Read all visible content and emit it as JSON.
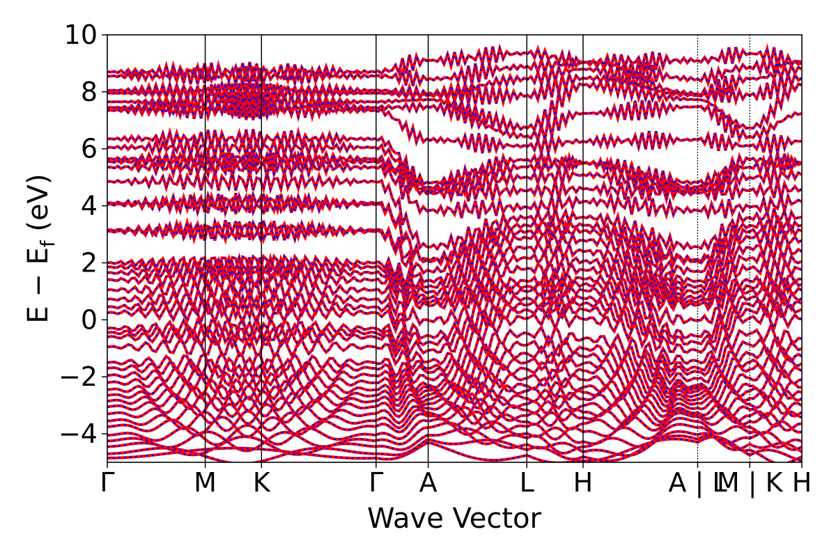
{
  "chart_data": {
    "type": "line",
    "title": "",
    "xlabel": "Wave Vector",
    "ylabel": "E − E",
    "ylabel_subscript": "f",
    "ylabel_unit": "(eV)",
    "ylim": [
      -5,
      10
    ],
    "yticks": [
      -4,
      -2,
      0,
      2,
      4,
      6,
      8,
      10
    ],
    "ytick_labels": [
      "−4",
      "−2",
      "0",
      "2",
      "4",
      "6",
      "8",
      "10"
    ],
    "kpath": [
      {
        "label": "Γ",
        "k": 0.0
      },
      {
        "label": "M",
        "k": 0.141
      },
      {
        "label": "K",
        "k": 0.222
      },
      {
        "label": "Γ",
        "k": 0.387
      },
      {
        "label": "A",
        "k": 0.462
      },
      {
        "label": "L",
        "k": 0.604
      },
      {
        "label": "H",
        "k": 0.685
      },
      {
        "label": "A | L",
        "k": 0.85
      },
      {
        "label": "M | K",
        "k": 0.925
      },
      {
        "label": "H",
        "k": 1.0
      }
    ],
    "discontinuities": [
      0.85,
      0.925
    ],
    "grid": false,
    "series": [
      {
        "style": "solid",
        "color": "#ff0000"
      },
      {
        "style": "dotted",
        "color": "#0000ff"
      }
    ],
    "band_energies_at_gamma": [
      -4.85,
      -4.7,
      -4.45,
      -4.25,
      -4.05,
      -3.75,
      -3.55,
      -3.3,
      -3.05,
      -2.85,
      -2.65,
      -2.45,
      -2.2,
      -1.95,
      -1.7,
      -1.5,
      -0.95,
      -0.6,
      -0.45,
      -0.3,
      0.25,
      0.45,
      0.72,
      1.05,
      1.4,
      1.65,
      1.85,
      2.0,
      3.1,
      3.15,
      4.05,
      4.1,
      4.85,
      5.35,
      5.55,
      5.65,
      6.05,
      6.35,
      7.35,
      7.45,
      7.65,
      7.95,
      8.05,
      8.55,
      8.7
    ],
    "band_energies_at_A": [
      -4.3,
      -4.1,
      -3.65,
      -3.35,
      -3.25,
      -2.95,
      -2.7,
      -2.45,
      -2.3,
      -1.85,
      -1.6,
      -0.95,
      -0.55,
      0.5,
      0.7,
      1.05,
      1.4,
      2.05,
      2.15,
      4.4,
      4.55,
      4.75,
      7.4,
      7.85,
      7.95,
      9.1
    ],
    "band_energies_at_L": [
      -4.75,
      -4.5,
      -4.2,
      -3.95,
      -3.65,
      -3.4,
      -3.1,
      -2.85,
      -2.5,
      -2.25,
      -1.8,
      -1.45,
      -1.05,
      -0.55,
      0.2,
      0.45,
      0.75,
      1.1,
      1.25,
      1.85,
      2.35,
      2.85,
      3.15,
      3.45,
      3.95,
      4.75,
      5.3,
      5.65,
      6.35,
      6.6,
      8.15,
      8.7,
      9.35
    ],
    "band_energies_at_H": [
      -4.95,
      -4.75,
      -4.5,
      -4.25,
      -3.75,
      -3.45,
      -3.2,
      -2.85,
      -2.55,
      -2.3,
      -1.85,
      -1.5,
      -1.15,
      -0.75,
      0.2,
      0.5,
      0.75,
      1.15,
      1.35,
      1.8,
      2.2,
      2.75,
      3.2,
      3.4,
      4.15,
      4.75,
      5.5,
      5.5,
      6.7,
      8.2,
      8.55,
      9.0,
      9.05
    ]
  }
}
